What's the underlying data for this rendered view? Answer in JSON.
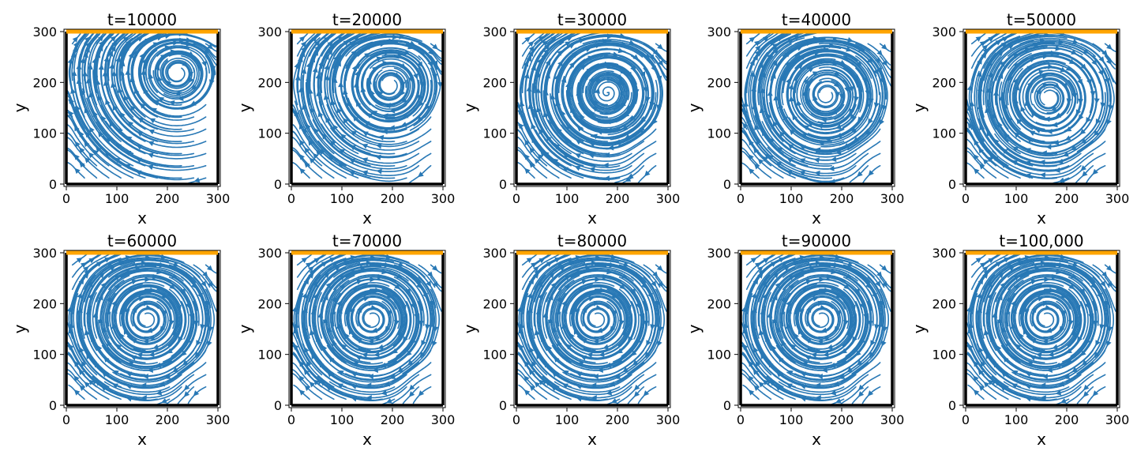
{
  "chart_data": {
    "type": "streamplot",
    "xlabel": "x",
    "ylabel": "y",
    "xlim": [
      0,
      300
    ],
    "ylim": [
      0,
      300
    ],
    "x_ticks": [
      0,
      100,
      200,
      300
    ],
    "y_ticks": [
      0,
      100,
      200,
      300
    ],
    "grid": false,
    "lid_color": "#ffa500",
    "wall_color": "#000000",
    "streamline_color": "#2878b5",
    "panels": [
      {
        "title": "t=10000",
        "primary_vortex": {
          "x": 220,
          "y": 220
        },
        "corner_vortex": null
      },
      {
        "title": "t=20000",
        "primary_vortex": {
          "x": 195,
          "y": 195
        },
        "corner_vortex": {
          "x": 285,
          "y": 40
        }
      },
      {
        "title": "t=30000",
        "primary_vortex": {
          "x": 180,
          "y": 180
        },
        "corner_vortex": {
          "x": 270,
          "y": 45
        }
      },
      {
        "title": "t=40000",
        "primary_vortex": {
          "x": 170,
          "y": 175
        },
        "corner_vortex": {
          "x": 265,
          "y": 40
        }
      },
      {
        "title": "t=50000",
        "primary_vortex": {
          "x": 165,
          "y": 170
        },
        "corner_vortex": {
          "x": 260,
          "y": 35
        }
      },
      {
        "title": "t=60000",
        "primary_vortex": {
          "x": 160,
          "y": 170
        },
        "corner_vortex": {
          "x": 260,
          "y": 35
        }
      },
      {
        "title": "t=70000",
        "primary_vortex": {
          "x": 160,
          "y": 170
        },
        "corner_vortex": {
          "x": 260,
          "y": 35
        }
      },
      {
        "title": "t=80000",
        "primary_vortex": {
          "x": 160,
          "y": 170
        },
        "corner_vortex": {
          "x": 260,
          "y": 35
        }
      },
      {
        "title": "t=90000",
        "primary_vortex": {
          "x": 160,
          "y": 170
        },
        "corner_vortex": {
          "x": 260,
          "y": 35
        }
      },
      {
        "title": "t=100,000",
        "primary_vortex": {
          "x": 160,
          "y": 170
        },
        "corner_vortex": {
          "x": 260,
          "y": 35
        }
      }
    ]
  }
}
